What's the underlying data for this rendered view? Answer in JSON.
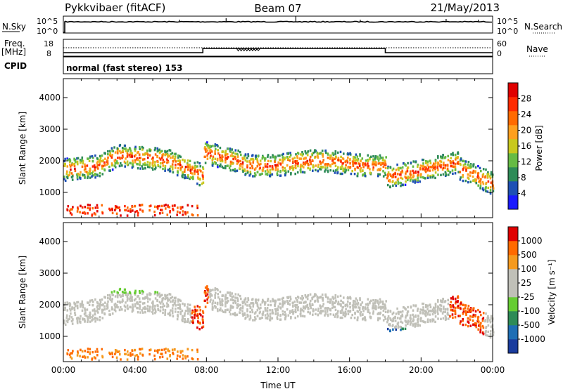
{
  "header": {
    "station": "Pykkvibaer (fitACF)",
    "beam": "Beam 07",
    "date": "21/May/2013"
  },
  "strips": {
    "nsky_label": "N.Sky",
    "nsky_ticks": [
      "10^5",
      "10^0"
    ],
    "nsearch_label": "N.Search",
    "nsearch_ticks": [
      "10^5",
      "10^0"
    ],
    "freq_label_line1": "Freq.",
    "freq_label_line2": "[MHz]",
    "freq_ticks": [
      "18",
      "8"
    ],
    "nave_label": "Nave",
    "nave_ticks": [
      "60",
      "0"
    ],
    "cpid_label": "CPID",
    "cpid_value": "normal (fast stereo) 153"
  },
  "colors": {
    "power_scale": [
      "#1a1aff",
      "#1e50b4",
      "#2e8b57",
      "#66bb44",
      "#c8c81e",
      "#ff9f1e",
      "#ff6a00",
      "#ff2a00",
      "#e00000"
    ],
    "velocity_scale": [
      "#1a3c9e",
      "#1e6eb4",
      "#2e8b57",
      "#66cc33",
      "#c0c0b8",
      "#c0c0b8",
      "#f59a1e",
      "#ff6a00",
      "#e00000"
    ]
  },
  "chart_data": [
    {
      "type": "heatmap",
      "name": "power",
      "xlabel": "",
      "ylabel": "Slant Range [km]",
      "x_ticks": [
        "00:00",
        "04:00",
        "08:00",
        "12:00",
        "16:00",
        "20:00",
        "00:00"
      ],
      "y_ticks": [
        1000,
        2000,
        3000,
        4000
      ],
      "ylim": [
        200,
        4600
      ],
      "colorbar_label": "Power [dB]",
      "colorbar_ticks": [
        4,
        8,
        12,
        16,
        20,
        24,
        28
      ]
    },
    {
      "type": "heatmap",
      "name": "velocity",
      "xlabel": "Time UT",
      "ylabel": "Slant Range [km]",
      "x_ticks": [
        "00:00",
        "04:00",
        "08:00",
        "12:00",
        "16:00",
        "20:00",
        "00:00"
      ],
      "y_ticks": [
        1000,
        2000,
        3000,
        4000
      ],
      "ylim": [
        200,
        4600
      ],
      "colorbar_label": "Velocity [m s⁻¹]",
      "colorbar_ticks": [
        -1000,
        -500,
        -100,
        -25,
        25,
        100,
        500,
        1000
      ]
    }
  ]
}
